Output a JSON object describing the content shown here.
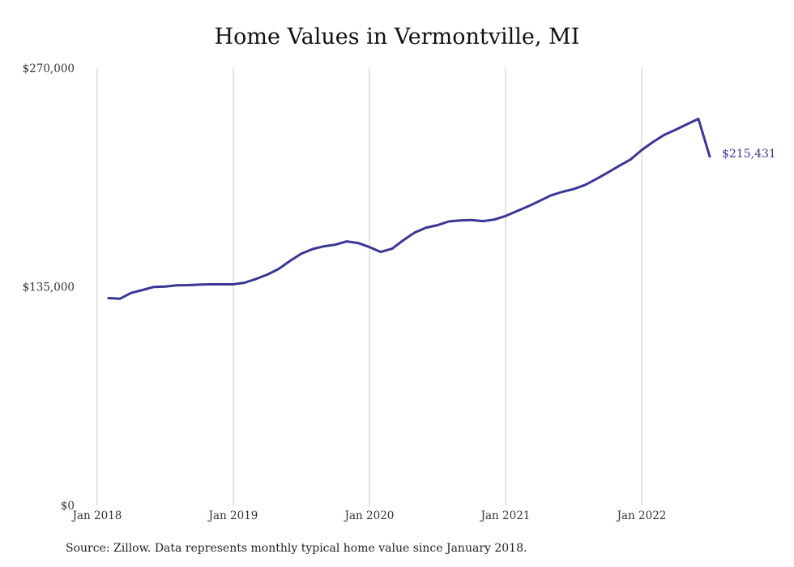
{
  "chart_data": {
    "type": "line",
    "title": "Home Values in Vermontville, MI",
    "xlabel": "",
    "ylabel": "",
    "ylim": [
      0,
      270000
    ],
    "y_ticks": [
      "$270,000",
      "$135,000",
      "$0"
    ],
    "y_tick_values": [
      270000,
      135000,
      0
    ],
    "x_ticks": [
      "Jan 2018",
      "Jan 2019",
      "Jan 2020",
      "Jan 2021",
      "Jan 2022"
    ],
    "x_tick_dates": [
      "2018-01",
      "2019-01",
      "2020-01",
      "2021-01",
      "2022-01"
    ],
    "grid": "vertical lines at January of each year",
    "series": [
      {
        "color": "#3b3796",
        "end_label": "$215,431",
        "x": [
          "2018-02",
          "2018-03",
          "2018-04",
          "2018-05",
          "2018-06",
          "2018-07",
          "2018-08",
          "2018-09",
          "2018-10",
          "2018-11",
          "2018-12",
          "2019-01",
          "2019-02",
          "2019-03",
          "2019-04",
          "2019-05",
          "2019-06",
          "2019-07",
          "2019-08",
          "2019-09",
          "2019-10",
          "2019-11",
          "2019-12",
          "2020-01",
          "2020-02",
          "2020-03",
          "2020-04",
          "2020-05",
          "2020-06",
          "2020-07",
          "2020-08",
          "2020-09",
          "2020-10",
          "2020-11",
          "2020-12",
          "2021-01",
          "2021-02",
          "2021-03",
          "2021-04",
          "2021-05",
          "2021-06",
          "2021-07",
          "2021-08",
          "2021-09",
          "2021-10",
          "2021-11",
          "2021-12",
          "2022-01",
          "2022-02",
          "2022-03",
          "2022-04",
          "2022-05",
          "2022-06",
          "2022-07"
        ],
        "values": [
          128000,
          127600,
          131200,
          133000,
          134900,
          135100,
          135900,
          136000,
          136300,
          136500,
          136500,
          136500,
          137500,
          139800,
          142500,
          146000,
          151000,
          155500,
          158300,
          160000,
          161000,
          163000,
          162000,
          159500,
          156500,
          158500,
          163800,
          168500,
          171500,
          173000,
          175300,
          176000,
          176200,
          175500,
          176500,
          178700,
          181700,
          184700,
          188000,
          191400,
          193600,
          195300,
          197800,
          201500,
          205500,
          209600,
          213500,
          219400,
          224400,
          228800,
          232000,
          235400,
          238700,
          215431
        ]
      }
    ],
    "annotation": "$215,431"
  },
  "footer": {
    "source": "Source: Zillow. Data represents monthly typical home value since January 2018."
  }
}
